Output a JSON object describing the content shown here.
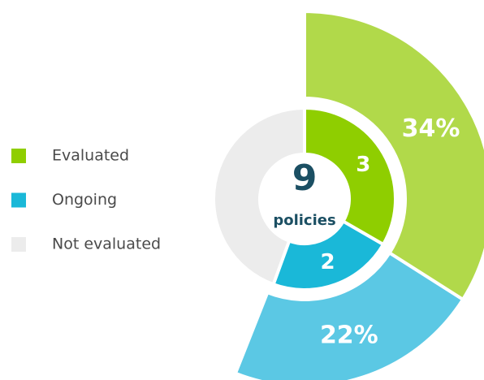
{
  "chart_data": {
    "type": "nested-donut",
    "categories": [
      "Evaluated",
      "Ongoing",
      "Not evaluated"
    ],
    "legend_colors": [
      "#8fce00",
      "#1ab8d8",
      "#ececec"
    ],
    "total": 9,
    "center_label": "policies",
    "series": [
      {
        "values": [
          3,
          2,
          4
        ],
        "colors": [
          "#8fce00",
          "#1ab8d8",
          "#ececec"
        ],
        "value_labels": [
          "3",
          "2",
          null
        ]
      },
      {
        "values": [
          34,
          22,
          null
        ],
        "colors": [
          "#b1d94a",
          "#5bc8e4",
          "#ececec"
        ],
        "value_labels": [
          "34%",
          "22%",
          null
        ]
      }
    ]
  }
}
